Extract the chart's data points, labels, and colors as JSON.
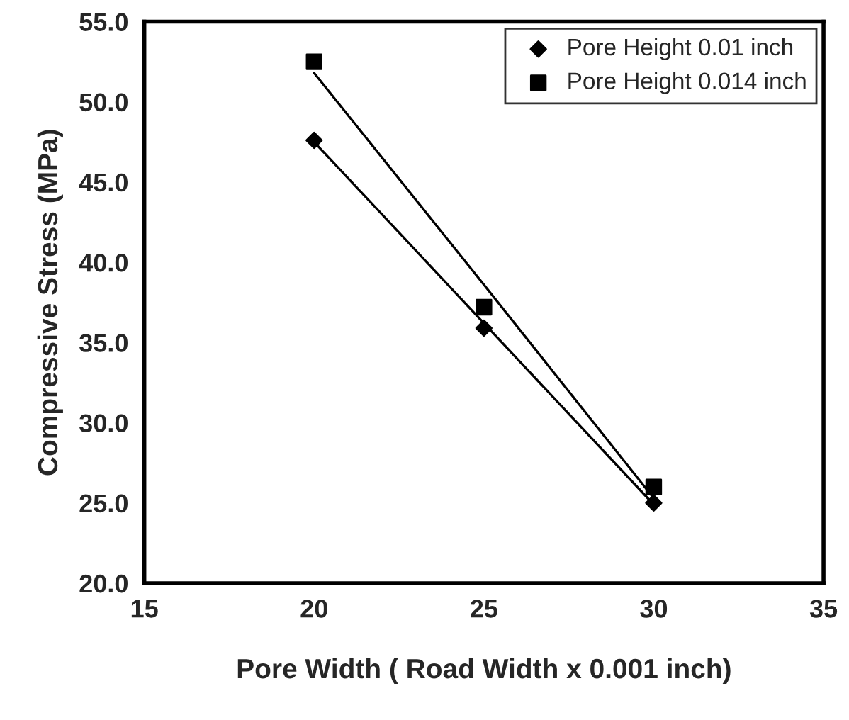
{
  "chart_data": {
    "type": "scatter",
    "xlabel": "Pore Width ( Road Width x 0.001 inch)",
    "ylabel": "Compressive Stress (MPa)",
    "xlim": [
      15,
      35
    ],
    "xticks": [
      15,
      20,
      25,
      30,
      35
    ],
    "ylim": [
      20,
      55
    ],
    "yticks": [
      {
        "value": 20,
        "label": "20.0"
      },
      {
        "value": 25,
        "label": "25.0"
      },
      {
        "value": 30,
        "label": "30.0"
      },
      {
        "value": 35,
        "label": "35.0"
      },
      {
        "value": 40,
        "label": "40.0"
      },
      {
        "value": 45,
        "label": "45.0"
      },
      {
        "value": 50,
        "label": "50.0"
      },
      {
        "value": 55,
        "label": "55.0"
      }
    ],
    "x": [
      20,
      25,
      30
    ],
    "grid": false,
    "legend": "top right",
    "series": [
      {
        "name": "Pore Height 0.01 inch",
        "color": "#000000",
        "marker": "diamond",
        "values": [
          47.6,
          35.9,
          25.0
        ]
      },
      {
        "name": "Pore Height 0.014 inch",
        "color": "#000000",
        "marker": "square",
        "values": [
          52.5,
          37.2,
          26.0
        ]
      },
      {
        "type": "line",
        "color": "#000000",
        "marker": "none",
        "values": [
          47.5,
          36.2,
          24.9
        ]
      },
      {
        "type": "line",
        "color": "#000000",
        "marker": "none",
        "values": [
          51.8,
          38.6,
          25.3
        ]
      }
    ]
  }
}
